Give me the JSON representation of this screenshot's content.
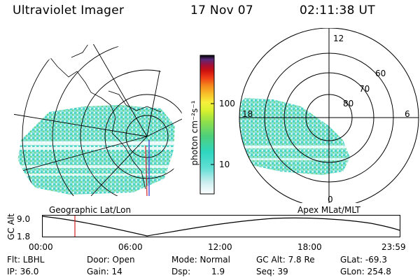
{
  "header": {
    "title": "Ultraviolet Imager",
    "date": "17 Nov 07",
    "time": "02:11:38 UT"
  },
  "panels": {
    "left_label": "Geographic Lat/Lon",
    "right_label": "Apex MLat/MLT"
  },
  "colorbar": {
    "unit_label": "photon cm⁻²s⁻¹",
    "ticks": [
      "100",
      "10"
    ],
    "colors": [
      "#ffffff",
      "#cfeef0",
      "#66e0d6",
      "#2fd6c0",
      "#4fcf7a",
      "#8fe04a",
      "#d7f02e",
      "#f7f03a",
      "#f7c02a",
      "#f58a1c",
      "#ef3b16",
      "#cc1010",
      "#a0103a",
      "#5a2a7a",
      "#000000"
    ]
  },
  "polar": {
    "mlt_labels": [
      "12",
      "18",
      "6",
      "0"
    ],
    "lat_labels": [
      "60",
      "70",
      "80"
    ]
  },
  "timeline": {
    "axis_title": "GC Alt",
    "y_top": "9.0",
    "y_bottom": "1.8",
    "ticks": [
      "00:00",
      "06:00",
      "12:00",
      "18:00",
      "23:59"
    ],
    "current_fraction": 0.092
  },
  "info": {
    "filter": "Flt: LBHL",
    "ip": "IP: 36.0",
    "door": "Door: Open",
    "gain": "Gain: 14",
    "mode": "Mode: Normal",
    "dsp_label": "Dsp:",
    "dsp_value": "1.9",
    "gc_alt": "GC Alt: 7.8 Re",
    "seq": "Seq: 39",
    "glat": "GLat: -69.3",
    "glon": "GLon: 254.8"
  }
}
